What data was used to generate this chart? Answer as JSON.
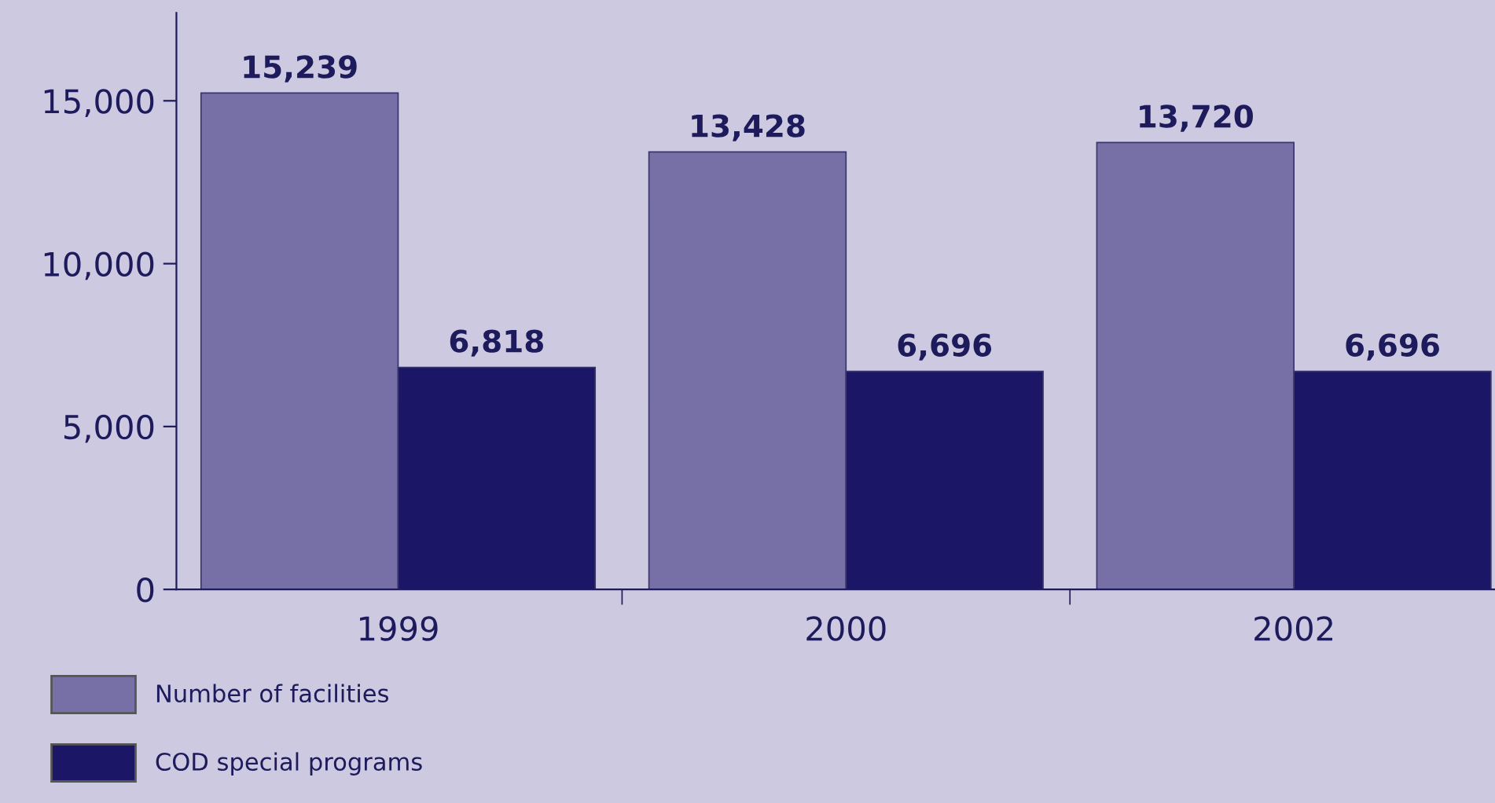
{
  "chart_data": {
    "type": "bar",
    "categories": [
      "1999",
      "2000",
      "2002"
    ],
    "series": [
      {
        "name": "Number of facilities",
        "color": "#7670a6",
        "values": [
          15239,
          13428,
          13720
        ],
        "value_labels": [
          "15,239",
          "13,428",
          "13,720"
        ]
      },
      {
        "name": "COD special programs",
        "color": "#1b1666",
        "values": [
          6818,
          6696,
          6696
        ],
        "value_labels": [
          "6,818",
          "6,696",
          "6,696"
        ]
      }
    ],
    "ylim": [
      0,
      17700
    ],
    "yticks": [
      0,
      {
        "value": 5000,
        "label": "5,000"
      },
      {
        "value": 10000,
        "label": "10,000"
      },
      {
        "value": 15000,
        "label": "15,000"
      }
    ],
    "grid": false,
    "legend": "bottom left"
  }
}
